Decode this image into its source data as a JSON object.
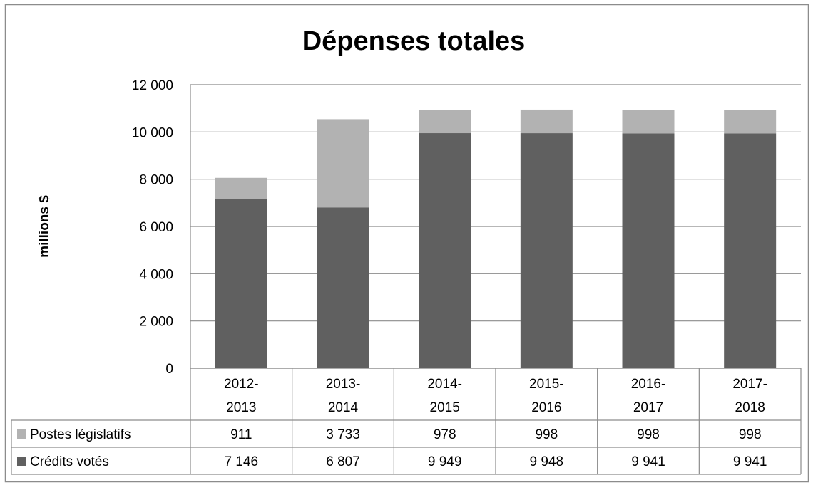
{
  "chart_data": {
    "type": "bar",
    "stacked": true,
    "title": "Dépenses totales",
    "ylabel": "millions $",
    "ylim": [
      0,
      12000
    ],
    "yticks": [
      0,
      2000,
      4000,
      6000,
      8000,
      10000,
      12000
    ],
    "ytick_labels": [
      "0",
      "2 000",
      "4 000",
      "6 000",
      "8 000",
      "10 000",
      "12 000"
    ],
    "categories": [
      [
        "2012-",
        "2013"
      ],
      [
        "2013-",
        "2014"
      ],
      [
        "2014-",
        "2015"
      ],
      [
        "2015-",
        "2016"
      ],
      [
        "2016-",
        "2017"
      ],
      [
        "2017-",
        "2018"
      ]
    ],
    "series": [
      {
        "name": "Crédits votés",
        "color": "#606060",
        "values": [
          7146,
          6807,
          9949,
          9948,
          9941,
          9941
        ],
        "labels": [
          "7 146",
          "6 807",
          "9 949",
          "9 948",
          "9 941",
          "9 941"
        ]
      },
      {
        "name": "Postes législatifs",
        "color": "#b2b2b2",
        "values": [
          911,
          3733,
          978,
          998,
          998,
          998
        ],
        "labels": [
          "911",
          "3 733",
          "978",
          "998",
          "998",
          "998"
        ]
      }
    ],
    "grid": true,
    "legend": "data-table"
  }
}
